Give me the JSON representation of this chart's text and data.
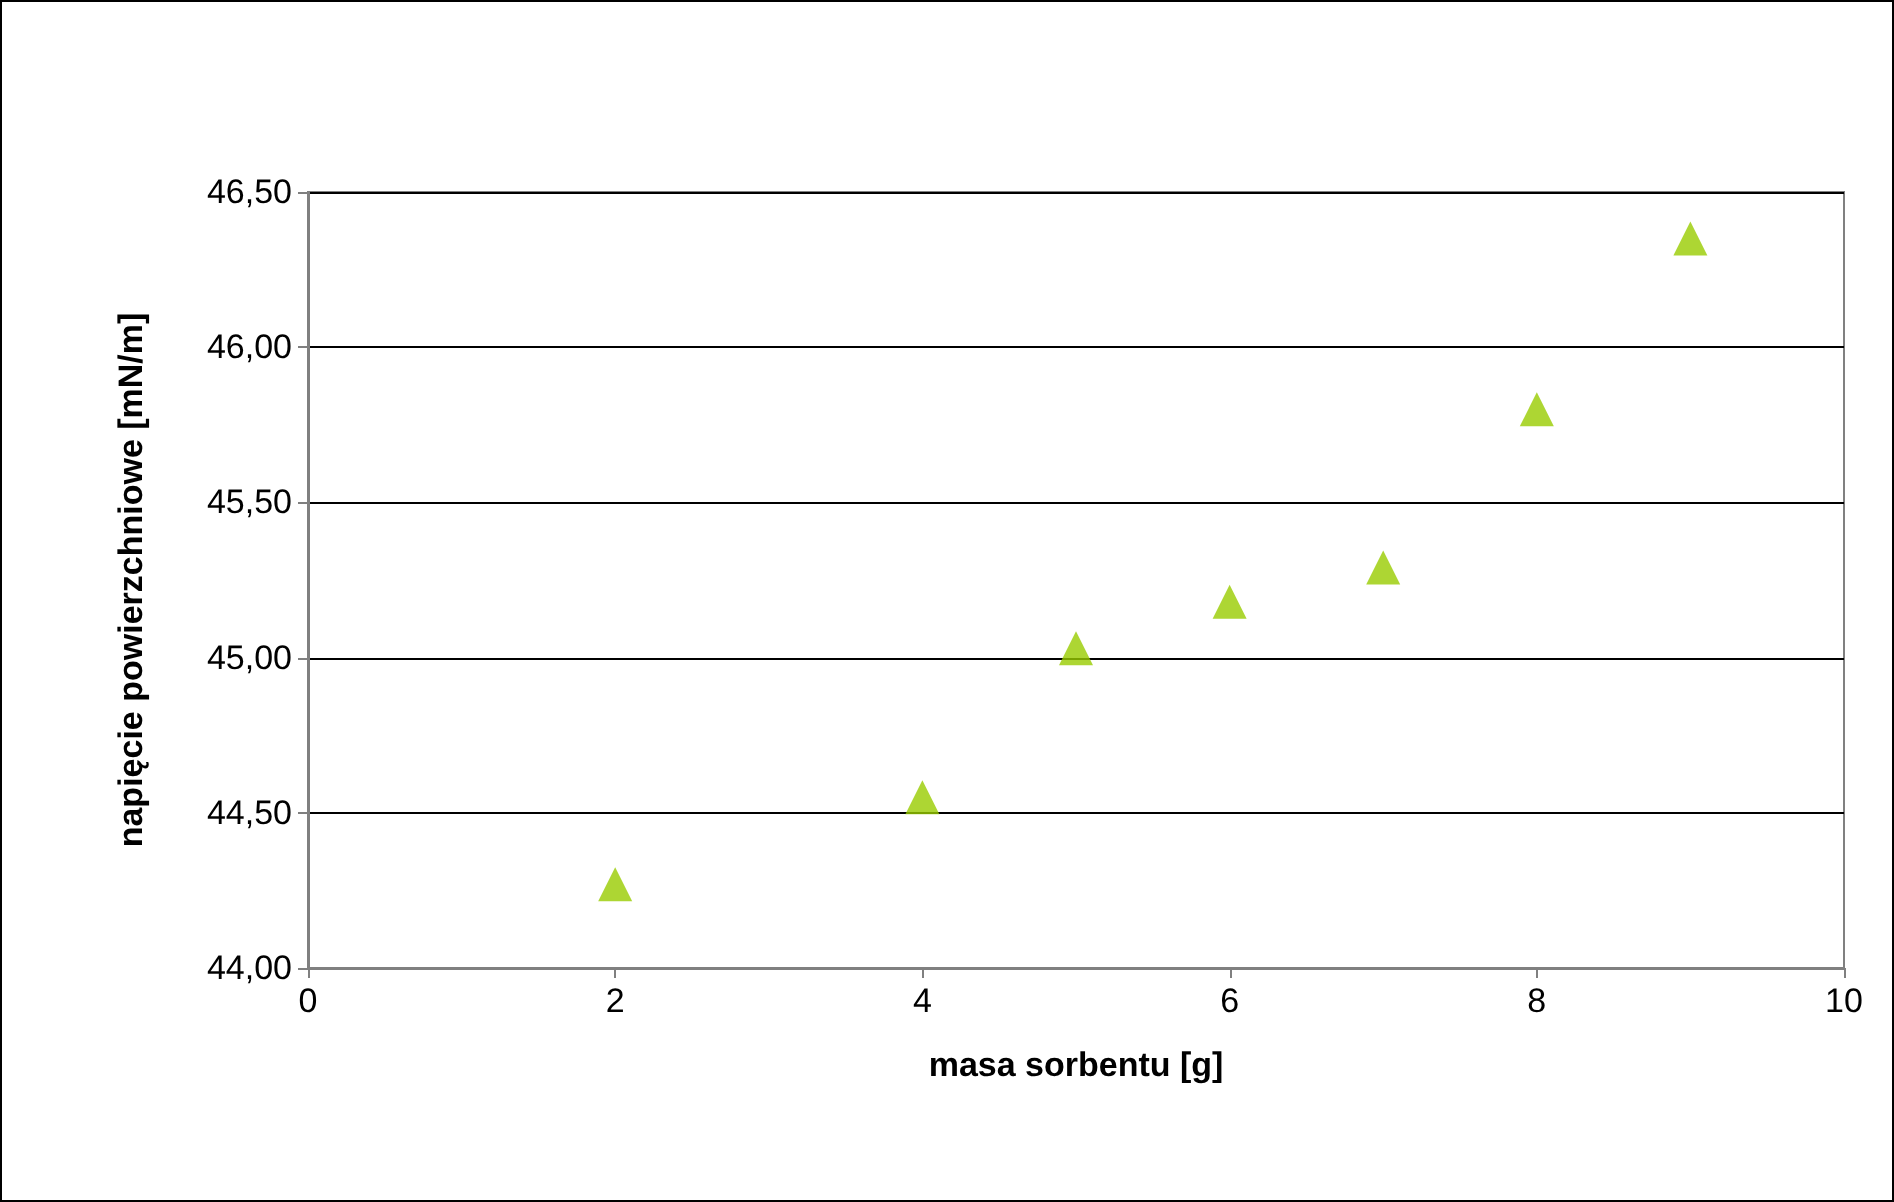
{
  "chart_data": {
    "type": "scatter",
    "xlabel": "masa sorbentu [g]",
    "ylabel": "napięcie powierzchniowe [mN/m]",
    "x": [
      2,
      4,
      5,
      6,
      7,
      8,
      9
    ],
    "values": [
      44.27,
      44.55,
      45.03,
      45.18,
      45.29,
      45.8,
      46.35
    ],
    "color": "#99cc00",
    "marker": "triangle",
    "grid": "y",
    "xlim": [
      0,
      10
    ],
    "xticks": [
      0,
      2,
      4,
      6,
      8,
      10
    ],
    "ylim": [
      44,
      46.5
    ],
    "yticks": [
      {
        "value": 44,
        "label": "44,00"
      },
      {
        "value": 44.5,
        "label": "44,50"
      },
      {
        "value": 45,
        "label": "45,00"
      },
      {
        "value": 45.5,
        "label": "45,50"
      },
      {
        "value": 46,
        "label": "46,00"
      },
      {
        "value": 46.5,
        "label": "46,50"
      }
    ]
  }
}
